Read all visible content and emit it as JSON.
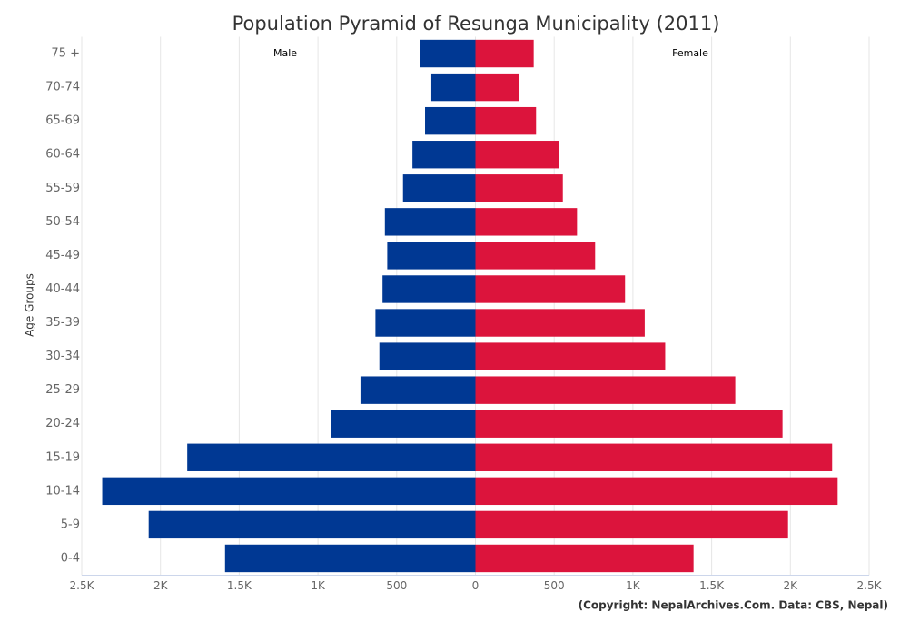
{
  "chart_data": {
    "type": "pyramid",
    "title": "Population Pyramid of Resunga Municipality (2011)",
    "y_axis_label": "Age Groups",
    "credit": "(Copyright: NepalArchives.Com. Data: CBS, Nepal)",
    "categories": [
      "0-4",
      "5-9",
      "10-14",
      "15-19",
      "20-24",
      "25-29",
      "30-34",
      "35-39",
      "40-44",
      "45-49",
      "50-54",
      "55-59",
      "60-64",
      "65-69",
      "70-74",
      "75 +"
    ],
    "series": [
      {
        "name": "Male",
        "color": "#003893",
        "values": [
          -1590,
          -2075,
          -2370,
          -1830,
          -915,
          -730,
          -610,
          -635,
          -590,
          -560,
          -575,
          -460,
          -400,
          -320,
          -280,
          -350
        ]
      },
      {
        "name": "Female",
        "color": "#dc143c",
        "values": [
          1385,
          1985,
          2300,
          2265,
          1950,
          1650,
          1205,
          1075,
          950,
          760,
          645,
          555,
          530,
          385,
          275,
          370
        ]
      }
    ],
    "xlim": [
      -2500,
      2500
    ],
    "xticks": [
      {
        "value": -2500,
        "label": "2.5K"
      },
      {
        "value": -2000,
        "label": "2K"
      },
      {
        "value": -1500,
        "label": "1.5K"
      },
      {
        "value": -1000,
        "label": "1K"
      },
      {
        "value": -500,
        "label": "500"
      },
      0,
      500,
      {
        "value": 1000,
        "label": "1K"
      },
      {
        "value": 1500,
        "label": "1.5K"
      },
      {
        "value": 2000,
        "label": "2K"
      },
      {
        "value": 2500,
        "label": "2.5K"
      }
    ],
    "grid": true
  }
}
